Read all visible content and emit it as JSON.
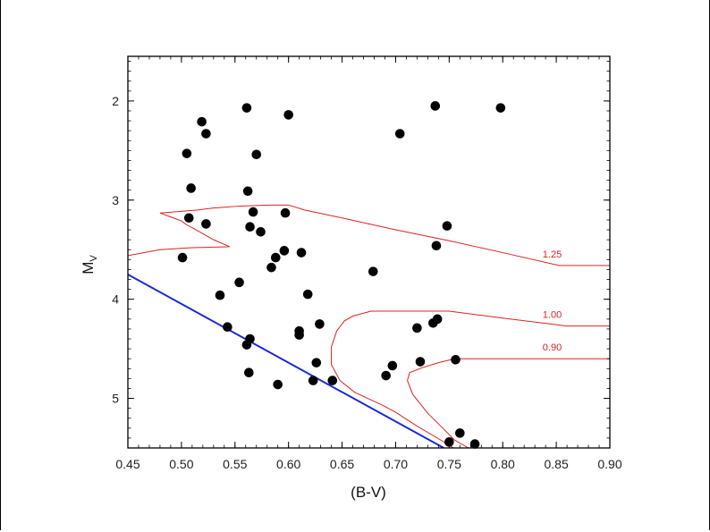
{
  "chart_data": {
    "type": "scatter",
    "title": "",
    "xlabel": "(B-V)",
    "ylabel": "M",
    "ylabel_sub": "V",
    "xlim": [
      0.45,
      0.9
    ],
    "ylim": [
      1.55,
      5.5
    ],
    "y_inverted": true,
    "grid": false,
    "x_ticks": [
      0.45,
      0.5,
      0.55,
      0.6,
      0.65,
      0.7,
      0.75,
      0.8,
      0.85,
      0.9
    ],
    "x_tick_labels": [
      "0.45",
      "0.50",
      "0.55",
      "0.60",
      "0.65",
      "0.70",
      "0.75",
      "0.80",
      "0.85",
      "0.90"
    ],
    "y_ticks": [
      2,
      3,
      4,
      5
    ],
    "y_tick_labels": [
      "2",
      "3",
      "4",
      "5"
    ],
    "points_color": "#000000",
    "points": [
      [
        0.561,
        2.07
      ],
      [
        0.519,
        2.21
      ],
      [
        0.523,
        2.33
      ],
      [
        0.6,
        2.14
      ],
      [
        0.505,
        2.53
      ],
      [
        0.57,
        2.54
      ],
      [
        0.509,
        2.88
      ],
      [
        0.562,
        2.91
      ],
      [
        0.567,
        3.12
      ],
      [
        0.597,
        3.13
      ],
      [
        0.507,
        3.18
      ],
      [
        0.523,
        3.24
      ],
      [
        0.564,
        3.27
      ],
      [
        0.574,
        3.32
      ],
      [
        0.596,
        3.51
      ],
      [
        0.612,
        3.53
      ],
      [
        0.588,
        3.58
      ],
      [
        0.501,
        3.58
      ],
      [
        0.584,
        3.68
      ],
      [
        0.554,
        3.83
      ],
      [
        0.536,
        3.96
      ],
      [
        0.618,
        3.95
      ],
      [
        0.543,
        4.28
      ],
      [
        0.629,
        4.25
      ],
      [
        0.61,
        4.32
      ],
      [
        0.61,
        4.36
      ],
      [
        0.564,
        4.4
      ],
      [
        0.561,
        4.46
      ],
      [
        0.626,
        4.64
      ],
      [
        0.563,
        4.74
      ],
      [
        0.623,
        4.82
      ],
      [
        0.641,
        4.82
      ],
      [
        0.59,
        4.86
      ],
      [
        0.737,
        2.05
      ],
      [
        0.798,
        2.07
      ],
      [
        0.704,
        2.33
      ],
      [
        0.748,
        3.26
      ],
      [
        0.738,
        3.46
      ],
      [
        0.679,
        3.72
      ],
      [
        0.739,
        4.2
      ],
      [
        0.735,
        4.24
      ],
      [
        0.72,
        4.29
      ],
      [
        0.756,
        4.61
      ],
      [
        0.723,
        4.63
      ],
      [
        0.697,
        4.67
      ],
      [
        0.691,
        4.77
      ],
      [
        0.75,
        5.44
      ],
      [
        0.76,
        5.35
      ],
      [
        0.774,
        5.46
      ]
    ],
    "zams_line": {
      "color": "#1a2ad6",
      "x": [
        0.45,
        0.745
      ],
      "y": [
        3.75,
        5.5
      ]
    },
    "isochrones": [
      {
        "label": "1.25",
        "color": "#e02020",
        "x": [
          0.9,
          0.853,
          0.8,
          0.75,
          0.7,
          0.65,
          0.615,
          0.6,
          0.58,
          0.555,
          0.53,
          0.515,
          0.48,
          0.49,
          0.5,
          0.505,
          0.512,
          0.53,
          0.545,
          0.51,
          0.48,
          0.45
        ],
        "y": [
          3.66,
          3.66,
          3.53,
          3.41,
          3.3,
          3.18,
          3.1,
          3.05,
          3.05,
          3.06,
          3.08,
          3.1,
          3.13,
          3.17,
          3.21,
          3.25,
          3.29,
          3.4,
          3.47,
          3.48,
          3.5,
          3.56
        ]
      },
      {
        "label": "1.00",
        "color": "#e02020",
        "x": [
          0.9,
          0.86,
          0.8,
          0.75,
          0.7,
          0.677,
          0.66,
          0.652,
          0.645,
          0.64,
          0.64,
          0.648,
          0.662,
          0.688,
          0.7,
          0.72,
          0.742,
          0.754
        ],
        "y": [
          4.27,
          4.27,
          4.19,
          4.12,
          4.12,
          4.12,
          4.17,
          4.22,
          4.32,
          4.48,
          4.66,
          4.82,
          4.94,
          5.07,
          5.14,
          5.28,
          5.42,
          5.5
        ]
      },
      {
        "label": "0.90",
        "color": "#e02020",
        "x": [
          0.9,
          0.855,
          0.8,
          0.755,
          0.74,
          0.725,
          0.713,
          0.711,
          0.716,
          0.73,
          0.744,
          0.755,
          0.768
        ],
        "y": [
          4.6,
          4.6,
          4.6,
          4.6,
          4.64,
          4.69,
          4.74,
          4.82,
          4.96,
          5.15,
          5.3,
          5.42,
          5.5
        ]
      }
    ]
  }
}
